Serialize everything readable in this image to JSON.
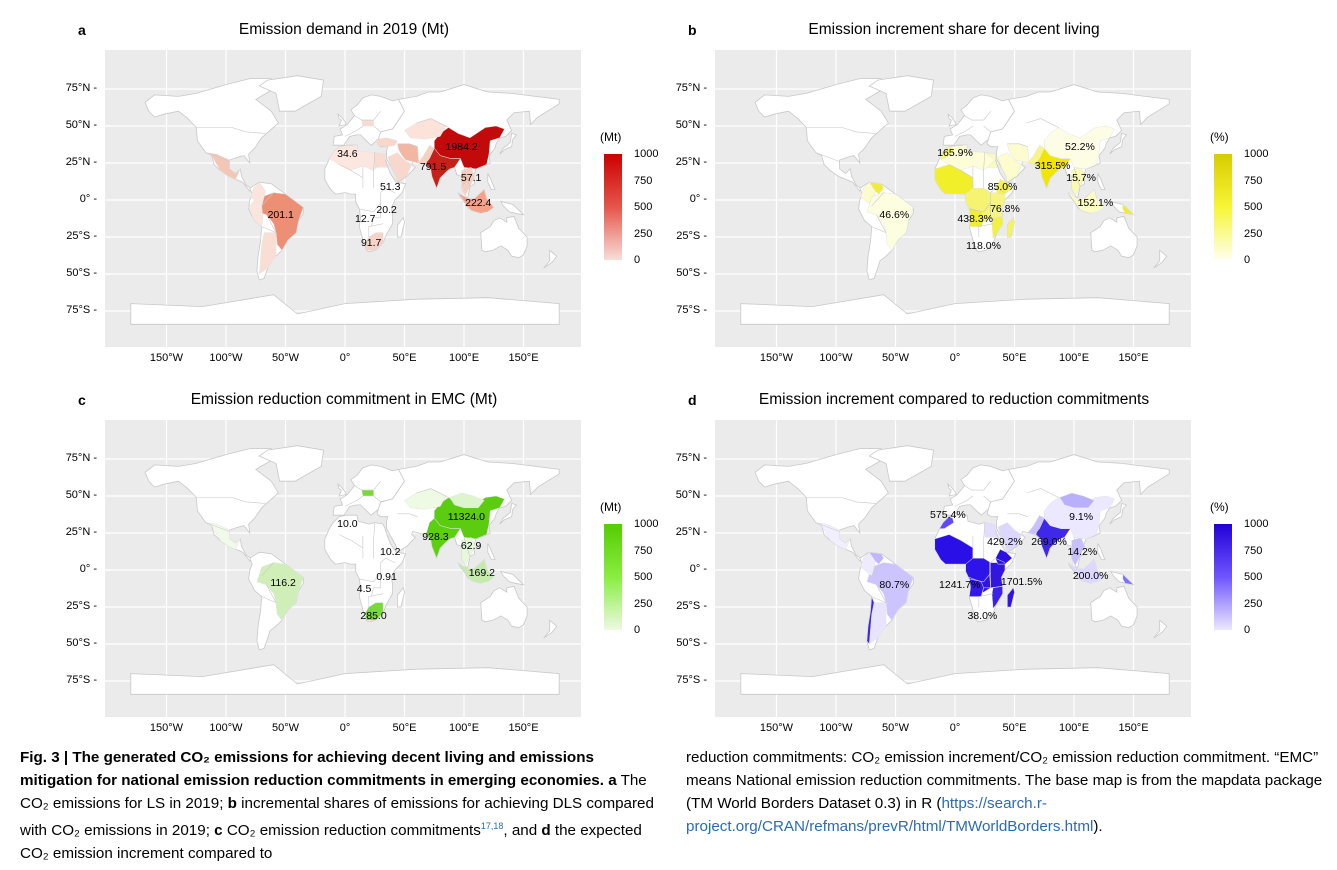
{
  "colors": {
    "panel_a": "#cc0000",
    "panel_b": "#e6d800",
    "panel_c": "#55d400",
    "panel_d": "#2200e0",
    "land": "#ffffff",
    "border": "#c8c8c8",
    "ocean": "#ebebeb"
  },
  "axis": {
    "lat_labels": [
      "75°N",
      "50°N",
      "25°N",
      "0°",
      "25°S",
      "50°S",
      "75°S"
    ],
    "lon_labels": [
      "150°W",
      "100°W",
      "50°W",
      "0°",
      "50°E",
      "100°E",
      "150°E"
    ]
  },
  "legend_ticks": [
    "1000",
    "750",
    "500",
    "250",
    "0"
  ],
  "panels": [
    {
      "label": "a",
      "title": "Emission demand in 2019 (Mt)",
      "unit": "(Mt)",
      "values": [
        {
          "text": "1984.2",
          "lon": 98,
          "lat": 36
        },
        {
          "text": "791.5",
          "lon": 74,
          "lat": 22
        },
        {
          "text": "34.6",
          "lon": 2,
          "lat": 31
        },
        {
          "text": "51.3",
          "lon": 38,
          "lat": 9
        },
        {
          "text": "57.1",
          "lon": 106,
          "lat": 15
        },
        {
          "text": "222.4",
          "lon": 112,
          "lat": -2
        },
        {
          "text": "201.1",
          "lon": -54,
          "lat": -10
        },
        {
          "text": "20.2",
          "lon": 35,
          "lat": -7
        },
        {
          "text": "12.7",
          "lon": 17,
          "lat": -13
        },
        {
          "text": "91.7",
          "lon": 22,
          "lat": -29
        }
      ]
    },
    {
      "label": "b",
      "title": "Emission increment share for decent living",
      "unit": "(%)",
      "values": [
        {
          "text": "52.2%",
          "lon": 105,
          "lat": 36
        },
        {
          "text": "165.9%",
          "lon": 0,
          "lat": 32
        },
        {
          "text": "315.5%",
          "lon": 82,
          "lat": 23
        },
        {
          "text": "85.0%",
          "lon": 40,
          "lat": 9
        },
        {
          "text": "15.7%",
          "lon": 106,
          "lat": 15
        },
        {
          "text": "152.1%",
          "lon": 118,
          "lat": -2
        },
        {
          "text": "46.6%",
          "lon": -51,
          "lat": -10
        },
        {
          "text": "76.8%",
          "lon": 42,
          "lat": -6
        },
        {
          "text": "438.3%",
          "lon": 17,
          "lat": -13
        },
        {
          "text": "118.0%",
          "lon": 24,
          "lat": -31
        }
      ]
    },
    {
      "label": "c",
      "title": "Emission reduction commitment in EMC (Mt)",
      "unit": "(Mt)",
      "values": [
        {
          "text": "11324.0",
          "lon": 102,
          "lat": 36
        },
        {
          "text": "10.0",
          "lon": 2,
          "lat": 31
        },
        {
          "text": "928.3",
          "lon": 76,
          "lat": 22
        },
        {
          "text": "62.9",
          "lon": 106,
          "lat": 16
        },
        {
          "text": "10.2",
          "lon": 38,
          "lat": 12
        },
        {
          "text": "169.2",
          "lon": 115,
          "lat": -2
        },
        {
          "text": "116.2",
          "lon": -52,
          "lat": -9
        },
        {
          "text": "0.91",
          "lon": 35,
          "lat": -5
        },
        {
          "text": "4.5",
          "lon": 16,
          "lat": -13
        },
        {
          "text": "285.0",
          "lon": 24,
          "lat": -31
        }
      ]
    },
    {
      "label": "d",
      "title": "Emission increment compared to reduction commitments",
      "unit": "(%)",
      "values": [
        {
          "text": "575.4%",
          "lon": -6,
          "lat": 37
        },
        {
          "text": "9.1%",
          "lon": 106,
          "lat": 36
        },
        {
          "text": "429.2%",
          "lon": 42,
          "lat": 19
        },
        {
          "text": "269.0%",
          "lon": 79,
          "lat": 19
        },
        {
          "text": "14.2%",
          "lon": 107,
          "lat": 12
        },
        {
          "text": "200.0%",
          "lon": 114,
          "lat": -4
        },
        {
          "text": "80.7%",
          "lon": -51,
          "lat": -10
        },
        {
          "text": "1241.7%",
          "lon": 4,
          "lat": -10
        },
        {
          "text": "1701.5%",
          "lon": 56,
          "lat": -8
        },
        {
          "text": "38.0%",
          "lon": 23,
          "lat": -31
        }
      ]
    }
  ],
  "caption": {
    "left": {
      "fig": "Fig. 3 | ",
      "bold_text": "The generated CO₂ emissions for achieving decent living and emissions mitigation for national emission reduction commitments in emerging economies.",
      "part_a_label": " a",
      "part_a": " The CO₂ emissions for LS in 2019; ",
      "part_b_label": "b",
      "part_b": " incremental shares of emissions for achieving DLS compared with CO₂ emissions in 2019; ",
      "part_c_label": "c",
      "part_c": " CO₂ emission reduction commitments",
      "refs": "17,18",
      "part_d_pre": ", and ",
      "part_d_label": "d",
      "part_d": " the expected CO₂ emission increment compared to"
    },
    "right": {
      "text": "reduction commitments: CO₂ emission increment/CO₂ emission reduction commitment. “EMC” means National emission reduction commitments. The base map is from the mapdata package (TM World Borders Dataset 0.3) in R (",
      "link": "https://search.r-project.org/CRAN/refmans/prevR/html/TMWorldBorders.html",
      "end": ")."
    }
  }
}
